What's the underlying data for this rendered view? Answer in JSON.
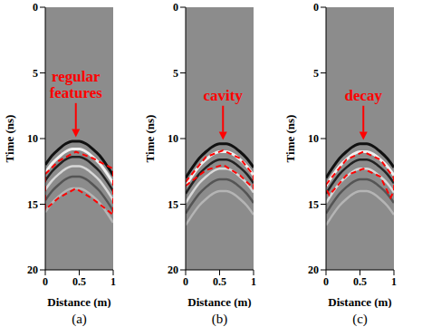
{
  "chart_data": [
    {
      "type": "line",
      "panel": "(a)",
      "xlabel": "Distance (m)",
      "ylabel": "Time (ns)",
      "xlim": [
        0,
        1
      ],
      "ylim": [
        0,
        20
      ],
      "xticks": [
        0,
        0.5,
        1
      ],
      "yticks": [
        0,
        5,
        10,
        15,
        20
      ],
      "annotation": {
        "text": "regular features",
        "color": "#ff0000"
      },
      "outline": {
        "x": [
          0,
          0.2,
          0.45,
          0.7,
          1,
          1,
          0.7,
          0.45,
          0.2,
          0,
          0
        ],
        "y": [
          12.7,
          11.7,
          11.0,
          11.5,
          12.3,
          15.8,
          14.6,
          13.8,
          14.5,
          15.4,
          12.7
        ],
        "color": "#ff0000",
        "line_style": "dashed"
      },
      "x": [
        0,
        0.1,
        0.2,
        0.3,
        0.4,
        0.5,
        0.6,
        0.7,
        0.8,
        0.9,
        1
      ],
      "series": [
        {
          "color": "#111111",
          "values": [
            12.0,
            11.3,
            10.8,
            10.4,
            10.2,
            10.2,
            10.4,
            10.8,
            11.3,
            12.0,
            12.8
          ]
        },
        {
          "color": "#f0f0f0",
          "values": [
            12.6,
            11.9,
            11.4,
            11.0,
            10.8,
            10.8,
            11.0,
            11.4,
            11.9,
            12.6,
            13.4
          ]
        },
        {
          "color": "#222222",
          "values": [
            13.2,
            12.5,
            12.0,
            11.6,
            11.4,
            11.4,
            11.6,
            12.0,
            12.5,
            13.2,
            14.0
          ]
        },
        {
          "color": "#d8d8d8",
          "values": [
            13.9,
            13.2,
            12.7,
            12.3,
            12.1,
            12.1,
            12.3,
            12.7,
            13.2,
            13.9,
            14.7
          ]
        },
        {
          "color": "#555555",
          "values": [
            14.7,
            14.0,
            13.5,
            13.1,
            12.9,
            12.9,
            13.1,
            13.5,
            14.0,
            14.7,
            15.5
          ]
        },
        {
          "color": "#b5b5b5",
          "values": [
            15.6,
            14.9,
            14.4,
            14.0,
            13.8,
            13.8,
            14.0,
            14.4,
            14.9,
            15.6,
            16.4
          ]
        }
      ]
    },
    {
      "type": "line",
      "panel": "(b)",
      "xlabel": "Distance (m)",
      "ylabel": "Time (ns)",
      "xlim": [
        0,
        1
      ],
      "ylim": [
        0,
        20
      ],
      "xticks": [
        0,
        0.5,
        1
      ],
      "yticks": [
        0,
        5,
        10,
        15,
        20
      ],
      "annotation": {
        "text": "cavity",
        "color": "#ff0000"
      },
      "outline": {
        "x": [
          0,
          0.3,
          0.55,
          0.8,
          1,
          1,
          0.8,
          0.55,
          0.3,
          0,
          0
        ],
        "y": [
          13.3,
          11.4,
          10.9,
          11.5,
          12.8,
          13.8,
          12.8,
          12.0,
          12.4,
          13.6,
          13.3
        ],
        "color": "#ff0000",
        "line_style": "dashed"
      },
      "x": [
        0,
        0.1,
        0.2,
        0.3,
        0.4,
        0.5,
        0.6,
        0.7,
        0.8,
        0.9,
        1
      ],
      "series": [
        {
          "color": "#111111",
          "values": [
            13.0,
            12.2,
            11.5,
            11.0,
            10.6,
            10.4,
            10.4,
            10.6,
            11.0,
            11.5,
            12.2
          ]
        },
        {
          "color": "#f0f0f0",
          "values": [
            13.6,
            12.8,
            12.1,
            11.6,
            11.2,
            11.0,
            11.0,
            11.2,
            11.6,
            12.1,
            12.8
          ]
        },
        {
          "color": "#222222",
          "values": [
            14.2,
            13.4,
            12.7,
            12.2,
            11.8,
            11.6,
            11.6,
            11.8,
            12.2,
            12.7,
            13.4
          ]
        },
        {
          "color": "#d8d8d8",
          "values": [
            14.9,
            14.1,
            13.4,
            12.9,
            12.5,
            12.3,
            12.3,
            12.5,
            12.9,
            13.4,
            14.1
          ]
        },
        {
          "color": "#555555",
          "values": [
            15.7,
            14.9,
            14.2,
            13.7,
            13.3,
            13.1,
            13.1,
            13.3,
            13.7,
            14.2,
            14.9
          ]
        },
        {
          "color": "#b5b5b5",
          "values": [
            16.6,
            15.8,
            15.1,
            14.6,
            14.2,
            14.0,
            14.0,
            14.2,
            14.6,
            15.1,
            15.8
          ]
        }
      ]
    },
    {
      "type": "line",
      "panel": "(c)",
      "xlabel": "Distance (m)",
      "ylabel": "Time (ns)",
      "xlim": [
        0,
        1
      ],
      "ylim": [
        0,
        20
      ],
      "xticks": [
        0,
        0.5,
        1
      ],
      "yticks": [
        0,
        5,
        10,
        15,
        20
      ],
      "annotation": {
        "text": "decay",
        "color": "#ff0000"
      },
      "outline": {
        "x": [
          0,
          0.3,
          0.55,
          0.8,
          1,
          1,
          0.95,
          0.8,
          0.55,
          0.3,
          0.05,
          0,
          0
        ],
        "y": [
          13.5,
          11.6,
          11.0,
          11.6,
          13.0,
          14.0,
          14.5,
          12.9,
          12.3,
          12.8,
          14.3,
          13.8,
          13.5
        ],
        "color": "#ff0000",
        "line_style": "dashed"
      },
      "x": [
        0,
        0.1,
        0.2,
        0.3,
        0.4,
        0.5,
        0.6,
        0.7,
        0.8,
        0.9,
        1
      ],
      "series": [
        {
          "color": "#111111",
          "values": [
            13.0,
            12.2,
            11.5,
            11.0,
            10.6,
            10.4,
            10.4,
            10.6,
            11.0,
            11.5,
            12.2
          ]
        },
        {
          "color": "#f0f0f0",
          "values": [
            13.6,
            12.8,
            12.1,
            11.6,
            11.2,
            11.0,
            11.0,
            11.2,
            11.6,
            12.1,
            12.8
          ]
        },
        {
          "color": "#222222",
          "values": [
            14.2,
            13.4,
            12.7,
            12.2,
            11.8,
            11.6,
            11.6,
            11.8,
            12.2,
            12.7,
            13.4
          ]
        },
        {
          "color": "#d8d8d8",
          "values": [
            14.9,
            14.1,
            13.4,
            12.9,
            12.5,
            12.3,
            12.3,
            12.5,
            12.9,
            13.4,
            14.1
          ]
        },
        {
          "color": "#555555",
          "values": [
            15.7,
            14.9,
            14.2,
            13.7,
            13.3,
            13.1,
            13.1,
            13.3,
            13.7,
            14.2,
            14.9
          ]
        },
        {
          "color": "#b5b5b5",
          "values": [
            16.6,
            15.8,
            15.1,
            14.6,
            14.2,
            14.0,
            14.0,
            14.2,
            14.6,
            15.1,
            15.8
          ]
        }
      ]
    }
  ]
}
